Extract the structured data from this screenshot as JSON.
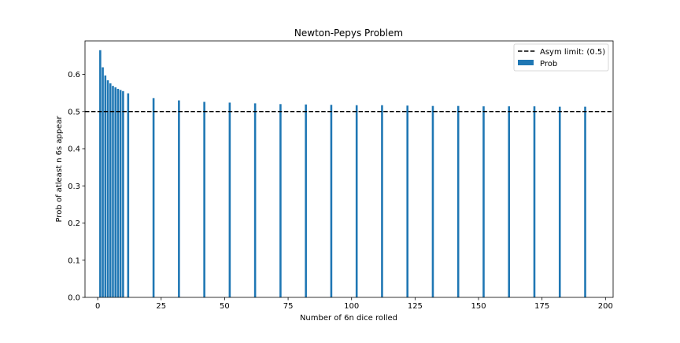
{
  "chart_data": {
    "type": "bar",
    "title": "Newton-Pepys Problem",
    "xlabel": "Number of 6n dice rolled",
    "ylabel": "Prob of atleast n 6s appear",
    "xlim": [
      -5,
      203
    ],
    "ylim": [
      0,
      0.69
    ],
    "xticks": [
      0,
      25,
      50,
      75,
      100,
      125,
      150,
      175,
      200
    ],
    "yticks": [
      0.0,
      0.1,
      0.2,
      0.3,
      0.4,
      0.5,
      0.6
    ],
    "grid": false,
    "legend_position": "top-right",
    "series": [
      {
        "name": "Prob",
        "color": "#1f77b4",
        "x": [
          1,
          2,
          3,
          4,
          5,
          6,
          7,
          8,
          9,
          10,
          12,
          22,
          32,
          42,
          52,
          62,
          72,
          82,
          92,
          102,
          112,
          122,
          132,
          142,
          152,
          162,
          172,
          182,
          192
        ],
        "y": [
          0.665,
          0.619,
          0.597,
          0.584,
          0.576,
          0.569,
          0.565,
          0.561,
          0.558,
          0.555,
          0.549,
          0.536,
          0.53,
          0.526,
          0.524,
          0.522,
          0.52,
          0.519,
          0.518,
          0.517,
          0.517,
          0.516,
          0.515,
          0.515,
          0.514,
          0.514,
          0.514,
          0.513,
          0.513
        ]
      }
    ],
    "reference_line": {
      "name": "Asym limit: (0.5)",
      "y": 0.5,
      "color": "#000000",
      "style": "dashed"
    }
  }
}
